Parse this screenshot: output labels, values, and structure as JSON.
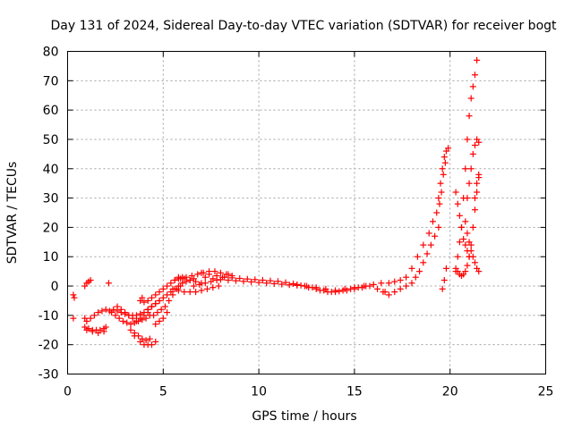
{
  "chart_data": {
    "type": "scatter",
    "title": "Day 131 of 2024, Sidereal Day-to-day VTEC variation (SDTVAR) for receiver bogt",
    "xlabel": "GPS time / hours",
    "ylabel": "SDTVAR / TECUs",
    "xlim": [
      0,
      25
    ],
    "ylim": [
      -30,
      80
    ],
    "grid": true,
    "marker": "+",
    "colors": {
      "series": "#ff0000",
      "grid": "#a0a0a0",
      "axis": "#000000"
    },
    "xticks": [
      0,
      5,
      10,
      15,
      20,
      25
    ],
    "yticks": [
      -30,
      -20,
      -10,
      0,
      10,
      20,
      30,
      40,
      50,
      60,
      70,
      80
    ],
    "series": [
      {
        "name": "SDTVAR",
        "x": [
          0.3,
          0.35,
          0.3,
          0.9,
          1.0,
          1.1,
          1.2,
          0.9,
          1.0,
          1.2,
          1.4,
          1.6,
          1.8,
          2.0,
          2.2,
          0.9,
          1.1,
          1.3,
          1.5,
          1.7,
          1.9,
          2.0,
          1.0,
          1.3,
          1.6,
          1.9,
          2.15,
          2.3,
          2.5,
          2.7,
          2.9,
          3.1,
          3.3,
          3.5,
          3.7,
          3.9,
          4.1,
          4.3,
          2.4,
          2.6,
          2.8,
          3.0,
          3.2,
          3.4,
          3.6,
          3.8,
          4.0,
          4.2,
          4.4,
          4.6,
          4.8,
          2.6,
          2.8,
          3.0,
          3.2,
          3.4,
          3.6,
          3.8,
          4.0,
          4.2,
          4.4,
          3.3,
          3.5,
          3.7,
          3.9,
          4.1,
          4.3,
          3.5,
          3.8,
          4.0,
          4.2,
          4.4,
          4.6,
          3.9,
          3.8,
          4.0,
          4.2,
          4.4,
          4.6,
          4.8,
          5.0,
          5.2,
          5.4,
          5.6,
          5.8,
          6.0,
          4.2,
          4.4,
          4.6,
          4.8,
          5.0,
          5.2,
          5.4,
          5.6,
          5.8,
          6.0,
          6.2,
          6.4,
          6.6,
          4.5,
          4.7,
          4.9,
          5.1,
          5.3,
          5.5,
          5.7,
          5.9,
          4.6,
          4.8,
          5.0,
          5.2,
          5.6,
          5.9,
          6.2,
          6.5,
          6.8,
          7.1,
          7.4,
          7.7,
          8.0,
          8.3,
          8.6,
          5.5,
          5.8,
          6.1,
          6.4,
          6.7,
          7.0,
          7.3,
          7.6,
          7.9,
          5.8,
          6.1,
          6.4,
          6.7,
          7.0,
          6.6,
          6.9,
          7.2,
          7.5,
          7.8,
          8.1,
          8.4,
          7.0,
          7.4,
          7.8,
          8.2,
          8.6,
          9.0,
          9.4,
          9.8,
          10.2,
          10.6,
          11.0,
          11.4,
          11.8,
          12.2,
          12.6,
          13.0,
          13.4,
          13.8,
          14.2,
          14.6,
          15.0,
          15.4,
          15.8,
          16.2,
          16.6,
          7.2,
          7.6,
          8.0,
          8.4,
          8.8,
          9.2,
          9.6,
          10.0,
          10.4,
          10.8,
          11.2,
          11.6,
          12.0,
          12.4,
          12.8,
          13.2,
          13.6,
          14.0,
          14.4,
          14.8,
          15.2,
          15.6,
          16.0,
          16.4,
          12.0,
          12.5,
          13.0,
          13.5,
          14.0,
          14.5,
          15.0,
          15.5,
          16.5,
          16.8,
          17.1,
          17.4,
          17.7,
          18.0,
          18.2,
          18.4,
          18.6,
          18.8,
          19.0,
          19.2,
          19.4,
          16.8,
          17.1,
          17.4,
          17.7,
          18.0,
          18.3,
          18.6,
          18.9,
          19.1,
          19.3,
          19.4,
          19.5,
          19.6,
          19.7,
          19.8,
          19.9,
          19.45,
          19.55,
          19.65,
          19.75,
          19.6,
          19.7,
          19.8,
          20.3,
          20.4,
          20.5,
          20.6,
          20.7,
          20.8,
          20.9,
          21.0,
          21.1,
          21.2,
          21.3,
          21.4,
          20.3,
          20.4,
          20.5,
          20.6,
          20.7,
          20.8,
          20.9,
          21.0,
          20.3,
          20.4,
          20.5,
          20.6,
          20.7,
          20.8,
          20.9,
          21.0,
          21.1,
          21.2,
          21.3,
          21.4,
          21.5,
          20.9,
          21.0,
          21.1,
          21.2,
          21.3,
          21.4,
          21.5,
          21.3,
          21.4,
          21.5,
          20.8,
          20.9,
          21.0,
          21.1,
          21.2,
          21.3,
          21.4,
          21.5
        ],
        "y": [
          -3,
          -4,
          -11,
          0,
          1,
          1.5,
          2,
          -11,
          -12,
          -11,
          -10,
          -9,
          -8.5,
          -8,
          -8.5,
          -14,
          -14.5,
          -15,
          -15,
          -15,
          -14.5,
          -14,
          -15,
          -15.5,
          -16,
          -15.5,
          1,
          -9,
          -10,
          -11,
          -12,
          -12.5,
          -13,
          -12.5,
          -12,
          -11.5,
          -11,
          -10,
          -8,
          -8.5,
          -9,
          -9.5,
          -10,
          -10,
          -10,
          -9.5,
          -9,
          -8,
          -7,
          -6,
          -5,
          -7,
          -8,
          -9,
          -10,
          -11,
          -12,
          -11,
          -10,
          -9,
          -7,
          -15,
          -16,
          -17,
          -18,
          -18.5,
          -18,
          -17,
          -19,
          -20,
          -20,
          -20,
          -19,
          -4,
          -5,
          -5.5,
          -5,
          -4,
          -3,
          -2,
          -1,
          0,
          1,
          2,
          2.5,
          3,
          -8,
          -7,
          -6,
          -5,
          -4,
          -3,
          -2,
          -1,
          0,
          1,
          1.5,
          2,
          2.5,
          -10,
          -9,
          -8,
          -7,
          -5,
          -3,
          -1,
          0,
          -13,
          -12,
          -11,
          -9,
          2,
          2.5,
          3,
          3.5,
          4,
          4.5,
          5,
          5,
          4.5,
          4,
          3.5,
          -1,
          -1.5,
          -2,
          -2,
          -2,
          -1.5,
          -1,
          -0.5,
          0,
          3,
          2.5,
          2,
          1.5,
          1,
          0,
          0.5,
          1,
          1.5,
          2,
          3,
          4,
          4.5,
          4,
          3.5,
          3,
          2.8,
          2.6,
          2.4,
          2.2,
          2,
          1.8,
          1.6,
          1.2,
          0.8,
          0.2,
          -0.5,
          -1,
          -1.5,
          -2,
          -1.8,
          -1.5,
          -1,
          -0.5,
          0,
          -1,
          -2,
          3,
          2.5,
          2.2,
          2,
          1.8,
          1.6,
          1.4,
          1.2,
          1,
          0.8,
          0.6,
          0.4,
          0.2,
          0,
          -0.5,
          -1.5,
          -2,
          -2,
          -1.5,
          -1,
          -0.5,
          0,
          0.5,
          1,
          0.5,
          0,
          -0.5,
          -1,
          -1.5,
          -1,
          -0.5,
          0,
          -2,
          -3,
          -2,
          -1,
          0,
          1,
          3,
          5,
          8,
          11,
          14,
          17,
          20,
          1,
          1.5,
          2,
          3,
          6,
          10,
          14,
          18,
          22,
          25,
          30,
          35,
          40,
          44,
          46,
          47,
          28,
          32,
          38,
          42,
          -1,
          2,
          6,
          5,
          10,
          15,
          20,
          30,
          40,
          50,
          58,
          64,
          68,
          72,
          77,
          32,
          28,
          24,
          20,
          16,
          14,
          12,
          10,
          6,
          5,
          4,
          3.5,
          4,
          5,
          7,
          10,
          14,
          20,
          26,
          32,
          38,
          30,
          35,
          40,
          45,
          48,
          50,
          49,
          30,
          35,
          37,
          22,
          18,
          15,
          12,
          10,
          8,
          6,
          5
        ]
      }
    ]
  }
}
